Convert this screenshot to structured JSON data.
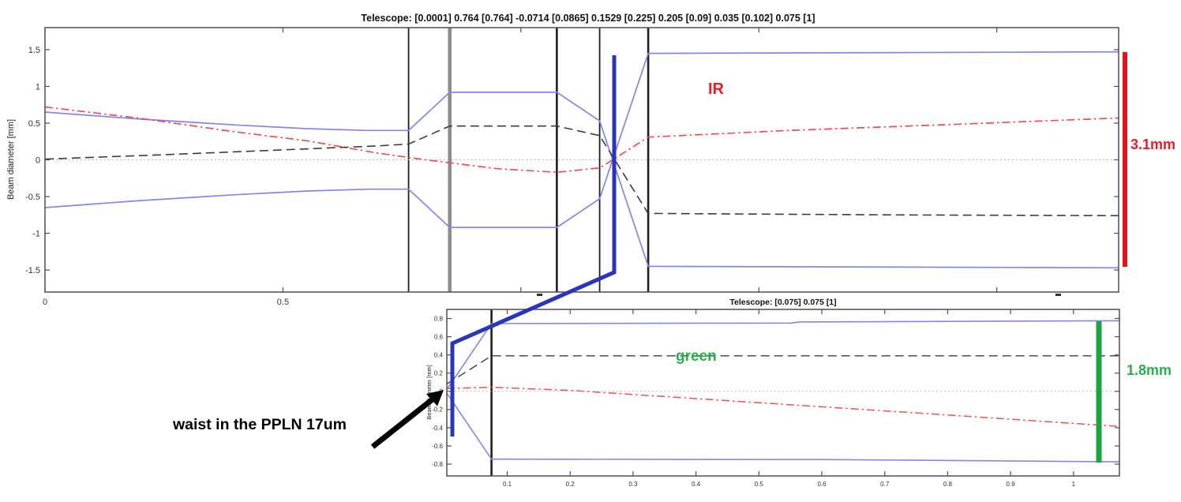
{
  "annotations": {
    "ir_label": "IR",
    "green_label": "green",
    "ir_beam_diameter": "3.1mm",
    "green_beam_diameter": "1.8mm",
    "waist_note": "waist in the PPLN 17um"
  },
  "colors": {
    "beam_blue": "#8484ef",
    "ray_red": "#f34c4c",
    "trace_black": "#3c3c3c",
    "zero_dotted": "#a8a8a8",
    "element_black": "#1f1f1f",
    "element_gray": "#8c8c8c",
    "spine": "#4f4f4f",
    "tick_text": "#333333",
    "callout_blue": "#2a35b8",
    "measure_red": "#e2131c",
    "measure_green": "#1ea344",
    "text_red": "#ec1c24",
    "text_green": "#27b14c",
    "arrow_black": "#000000"
  },
  "chart_data": [
    {
      "type": "line",
      "title": "Telescope: [0.0001] 0.764 [0.764] -0.0714 [0.0865] 0.1529 [0.225] 0.205 [0.09] 0.035 [0.102] 0.075 [1]",
      "xlabel": "",
      "ylabel": "Beam diameter [mm]",
      "xlim": [
        0,
        2.256
      ],
      "ylim": [
        -1.8,
        1.8
      ],
      "grid": false,
      "legend": "none",
      "xticks": {
        "values": [
          0,
          0.5,
          1,
          1.5,
          2
        ],
        "labels": [
          "0",
          "0.5",
          "",
          "",
          ""
        ]
      },
      "yticks": {
        "values": [
          1.5,
          1,
          0.5,
          0,
          -0.5,
          -1,
          -1.5
        ],
        "labels": [
          "1.5",
          "1",
          "0.5",
          "0",
          "-0.5",
          "-1",
          "-1.5"
        ]
      },
      "element_positions": [
        {
          "x": 0.764,
          "kind": "thin"
        },
        {
          "x": 0.8505,
          "kind": "gray"
        },
        {
          "x": 1.0755,
          "kind": "mid"
        },
        {
          "x": 1.1655,
          "kind": "thin"
        },
        {
          "x": 1.2675,
          "kind": "mid"
        }
      ],
      "series": [
        {
          "name": "ir-beam-edge-upper",
          "color": "beam_blue",
          "dash": "solid",
          "width": 1.7,
          "points": [
            [
              0,
              0.65
            ],
            [
              0.2,
              0.555
            ],
            [
              0.4,
              0.475
            ],
            [
              0.55,
              0.425
            ],
            [
              0.68,
              0.4
            ],
            [
              0.764,
              0.4
            ],
            [
              0.8505,
              0.92
            ],
            [
              1.0755,
              0.92
            ],
            [
              1.1655,
              0.53
            ],
            [
              1.2675,
              -1.45
            ],
            [
              1.8,
              -1.46
            ],
            [
              2.256,
              -1.47
            ]
          ]
        },
        {
          "name": "ir-beam-edge-lower",
          "color": "beam_blue",
          "dash": "solid",
          "width": 1.7,
          "points": [
            [
              0,
              -0.65
            ],
            [
              0.2,
              -0.555
            ],
            [
              0.4,
              -0.475
            ],
            [
              0.55,
              -0.425
            ],
            [
              0.68,
              -0.4
            ],
            [
              0.764,
              -0.4
            ],
            [
              0.8505,
              -0.92
            ],
            [
              1.0755,
              -0.92
            ],
            [
              1.1655,
              -0.53
            ],
            [
              1.2675,
              1.45
            ],
            [
              1.8,
              1.46
            ],
            [
              2.256,
              1.47
            ]
          ]
        },
        {
          "name": "ir-ray-red",
          "color": "ray_red",
          "dash": "dashdot",
          "width": 1.7,
          "points": [
            [
              0,
              0.72
            ],
            [
              0.2,
              0.565
            ],
            [
              0.4,
              0.38
            ],
            [
              0.55,
              0.26
            ],
            [
              0.7,
              0.09
            ],
            [
              0.8,
              0
            ],
            [
              0.95,
              -0.12
            ],
            [
              1.0755,
              -0.17
            ],
            [
              1.1655,
              -0.11
            ],
            [
              1.193,
              0
            ],
            [
              1.2675,
              0.31
            ],
            [
              1.56,
              0.4
            ],
            [
              1.9,
              0.48
            ],
            [
              2.256,
              0.57
            ]
          ]
        },
        {
          "name": "ir-ray-black",
          "color": "trace_black",
          "dash": "dash",
          "width": 1.6,
          "points": [
            [
              0,
              0.01
            ],
            [
              0.25,
              0.07
            ],
            [
              0.5,
              0.135
            ],
            [
              0.7,
              0.19
            ],
            [
              0.764,
              0.215
            ],
            [
              0.8505,
              0.46
            ],
            [
              1.0755,
              0.46
            ],
            [
              1.1655,
              0.33
            ],
            [
              1.2675,
              -0.73
            ],
            [
              1.8,
              -0.75
            ],
            [
              2.256,
              -0.76
            ]
          ]
        },
        {
          "name": "optical-axis",
          "color": "zero_dotted",
          "dash": "dot",
          "width": 1.1,
          "points": [
            [
              0,
              0
            ],
            [
              2.256,
              0
            ]
          ]
        }
      ]
    },
    {
      "type": "line",
      "title": "Telescope: [0.075] 0.075 [1]",
      "xlabel": "",
      "ylabel": "Beam diameter [mm]",
      "xlim": [
        0.004,
        1.073
      ],
      "ylim": [
        -0.93,
        0.9
      ],
      "grid": false,
      "legend": "none",
      "xticks": {
        "values": [
          0.1,
          0.2,
          0.3,
          0.4,
          0.5,
          0.6,
          0.7,
          0.8,
          0.9,
          1
        ],
        "labels": [
          "0.1",
          "0.2",
          "0.3",
          "0.4",
          "0.5",
          "0.6",
          "0.7",
          "0.8",
          "0.9",
          "1"
        ]
      },
      "yticks": {
        "values": [
          0.8,
          0.6,
          0.4,
          0.2,
          0,
          -0.2,
          -0.4,
          -0.6,
          -0.8
        ],
        "labels": [
          "0.8",
          "0.6",
          "0.4",
          "0.2",
          "0",
          "-0.2",
          "-0.4",
          "-0.6",
          "-0.8"
        ]
      },
      "element_positions": [
        {
          "x": 0.075,
          "kind": "mid"
        }
      ],
      "series": [
        {
          "name": "green-beam-edge-upper",
          "color": "beam_blue",
          "dash": "solid",
          "width": 1.6,
          "points": [
            [
              0.004,
              0.02
            ],
            [
              0.075,
              0.745
            ],
            [
              0.55,
              0.75
            ],
            [
              0.565,
              0.762
            ],
            [
              1.073,
              0.775
            ]
          ]
        },
        {
          "name": "green-beam-edge-lower",
          "color": "beam_blue",
          "dash": "solid",
          "width": 1.6,
          "points": [
            [
              0.004,
              -0.02
            ],
            [
              0.075,
              -0.745
            ],
            [
              0.6,
              -0.75
            ],
            [
              1.073,
              -0.775
            ]
          ]
        },
        {
          "name": "green-ray-red",
          "color": "ray_red",
          "dash": "dashdot",
          "width": 1.5,
          "points": [
            [
              0.004,
              0.03
            ],
            [
              0.075,
              0.045
            ],
            [
              0.2,
              0.01
            ],
            [
              0.4,
              -0.08
            ],
            [
              0.6,
              -0.17
            ],
            [
              0.8,
              -0.26
            ],
            [
              0.95,
              -0.33
            ],
            [
              1.073,
              -0.385
            ]
          ]
        },
        {
          "name": "green-ray-black",
          "color": "trace_black",
          "dash": "dash",
          "width": 1.4,
          "points": [
            [
              0.004,
              0.08
            ],
            [
              0.075,
              0.39
            ],
            [
              1.073,
              0.39
            ]
          ]
        },
        {
          "name": "optical-axis",
          "color": "zero_dotted",
          "dash": "dot",
          "width": 1,
          "points": [
            [
              0.004,
              0
            ],
            [
              1.073,
              0
            ]
          ]
        }
      ]
    }
  ]
}
